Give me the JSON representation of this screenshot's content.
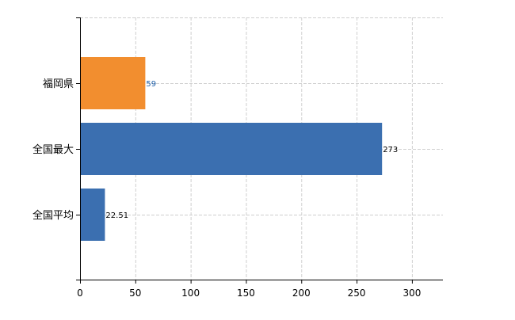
{
  "chart_data": {
    "type": "bar",
    "orientation": "horizontal",
    "categories": [
      "福岡県",
      "全国最大",
      "全国平均"
    ],
    "values": [
      59,
      273,
      22.51
    ],
    "data_labels": [
      "59",
      "273",
      "22.51"
    ],
    "bar_colors": [
      "#f28e2f",
      "#3b6fb0",
      "#3b6fb0"
    ],
    "data_label_colors": [
      "#1f5fa8",
      "#000000",
      "#000000"
    ],
    "xlim": [
      0,
      328
    ],
    "xticks": [
      0,
      50,
      100,
      150,
      200,
      250,
      300
    ],
    "grid": true,
    "title": "",
    "xlabel": "",
    "ylabel": ""
  }
}
